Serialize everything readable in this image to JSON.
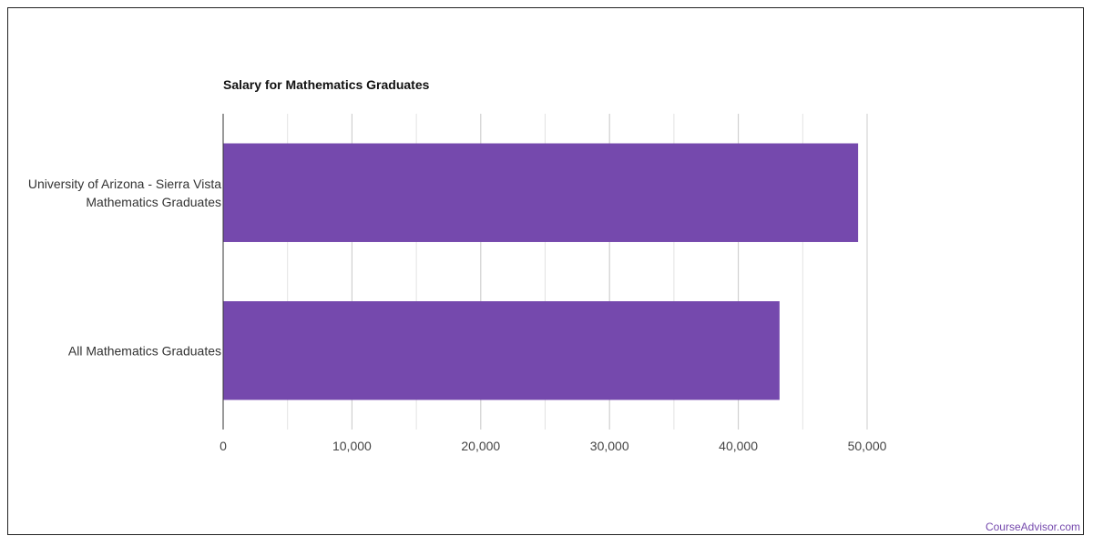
{
  "chart_data": {
    "type": "bar",
    "orientation": "horizontal",
    "title": "Salary for Mathematics Graduates",
    "categories": [
      [
        "University of Arizona - Sierra Vista",
        "Mathematics Graduates"
      ],
      [
        "All Mathematics Graduates"
      ]
    ],
    "values": [
      49300,
      43200
    ],
    "xlim": [
      0,
      50000
    ],
    "xticks": [
      0,
      10000,
      20000,
      30000,
      40000,
      50000
    ],
    "xtick_labels": [
      "0",
      "10,000",
      "20,000",
      "30,000",
      "40,000",
      "50,000"
    ],
    "grid": true,
    "bar_color": "#7549ad"
  },
  "footer": {
    "watermark": "CourseAdvisor.com"
  }
}
